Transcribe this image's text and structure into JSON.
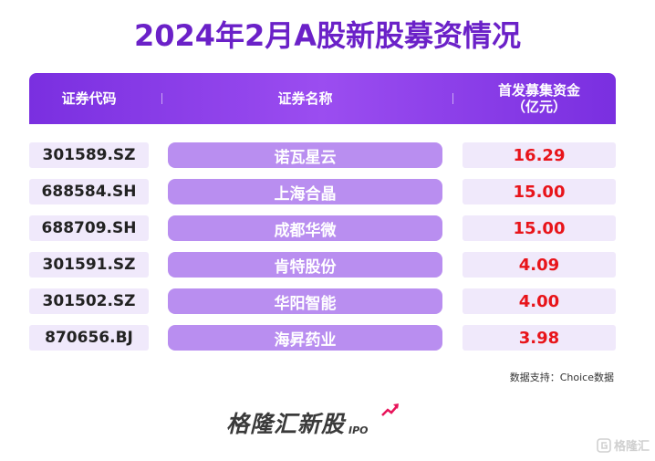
{
  "title": "2024年2月A股新股募资情况",
  "table": {
    "headers": [
      "证券代码",
      "证券名称",
      "首发募集资金\n（亿元）"
    ],
    "header_line1": "首发募集资金",
    "header_line2": "（亿元）",
    "rows": [
      {
        "code": "301589.SZ",
        "name": "诺瓦星云",
        "amount": "16.29"
      },
      {
        "code": "688584.SH",
        "name": "上海合晶",
        "amount": "15.00"
      },
      {
        "code": "688709.SH",
        "name": "成都华微",
        "amount": "15.00"
      },
      {
        "code": "301591.SZ",
        "name": "肯特股份",
        "amount": "4.09"
      },
      {
        "code": "301502.SZ",
        "name": "华阳智能",
        "amount": "4.00"
      },
      {
        "code": "870656.BJ",
        "name": "海昇药业",
        "amount": "3.98"
      }
    ]
  },
  "source": "数据支持：Choice数据",
  "brand": {
    "name": "格隆汇新股",
    "suffix": "IPO"
  },
  "watermark": "格隆汇",
  "colors": {
    "title": "#6b21c8",
    "header_bg": "#7a2fe0",
    "name_cell_bg": "#b98ef0",
    "light_cell_bg": "#f0e9fb",
    "amount_text": "#e8141a",
    "arrow": "#e8145a"
  },
  "icons": [
    "rising-arrow-icon",
    "gelonghui-logo-icon"
  ]
}
